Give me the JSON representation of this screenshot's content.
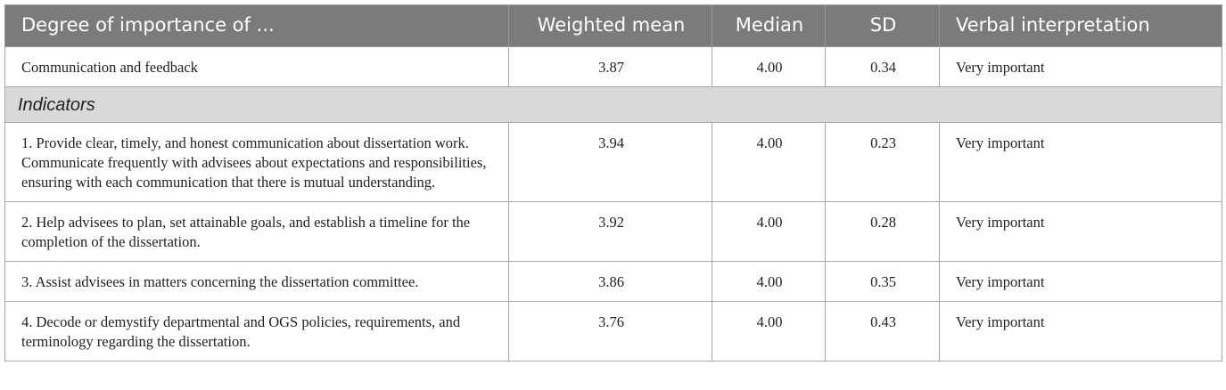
{
  "table": {
    "header": [
      "Degree of importance of ...",
      "Weighted mean",
      "Median",
      "SD",
      "Verbal interpretation"
    ],
    "summary_row": [
      "Communication and feedback",
      "3.87",
      "4.00",
      "0.34",
      "Very important"
    ],
    "section_label": "Indicators",
    "indicator_rows": [
      [
        "1. Provide clear, timely, and honest communication about dissertation work. Communicate frequently with advisees about expectations and responsibilities, ensuring with each communication that there is mutual understanding.",
        "3.94",
        "4.00",
        "0.23",
        "Very important"
      ],
      [
        "2. Help advisees to plan, set attainable goals, and establish a timeline for the completion of the dissertation.",
        "3.92",
        "4.00",
        "0.28",
        "Very important"
      ],
      [
        "3. Assist advisees in matters concerning the dissertation committee.",
        "3.86",
        "4.00",
        "0.35",
        "Very important"
      ],
      [
        "4. Decode or demystify departmental and OGS policies, requirements, and terminology regarding the dissertation.",
        "3.76",
        "4.00",
        "0.43",
        "Very important"
      ]
    ]
  }
}
